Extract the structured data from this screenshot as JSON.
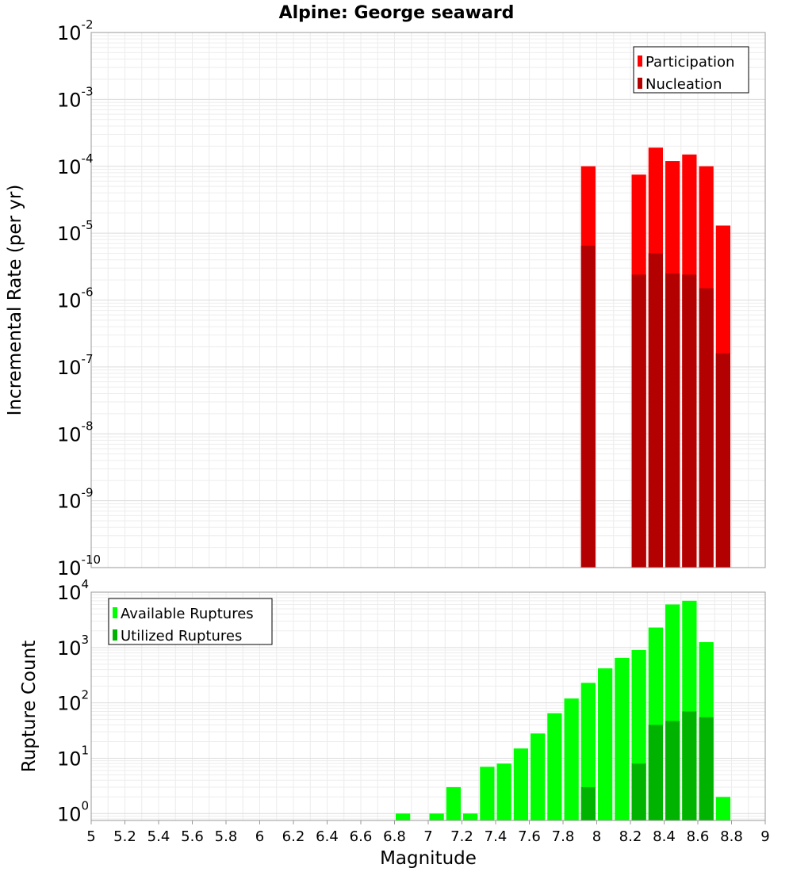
{
  "chart_data": [
    {
      "type": "bar",
      "title": "Alpine: George seaward",
      "ylabel": "Incremental Rate (per yr)",
      "xlabel": "",
      "yscale": "log",
      "ylim": [
        1e-10,
        0.01
      ],
      "xlim": [
        5,
        9
      ],
      "y_ticks": [
        {
          "base": "10",
          "exp": "-2"
        },
        {
          "base": "10",
          "exp": "-3"
        },
        {
          "base": "10",
          "exp": "-4"
        },
        {
          "base": "10",
          "exp": "-5"
        },
        {
          "base": "10",
          "exp": "-6"
        },
        {
          "base": "10",
          "exp": "-7"
        },
        {
          "base": "10",
          "exp": "-8"
        },
        {
          "base": "10",
          "exp": "-9"
        },
        {
          "base": "10",
          "exp": "-10"
        }
      ],
      "legend": {
        "position": "top-right",
        "entries": [
          "Participation",
          "Nucleation"
        ]
      },
      "bin_width": 0.1,
      "x": [
        7.95,
        8.25,
        8.35,
        8.45,
        8.55,
        8.65,
        8.75
      ],
      "series": [
        {
          "name": "Participation",
          "color": "#ff0000",
          "values": [
            0.0001,
            7.5e-05,
            0.00019,
            0.00012,
            0.00015,
            0.0001,
            1.3e-05
          ]
        },
        {
          "name": "Nucleation",
          "color": "#b30000",
          "values": [
            6.5e-06,
            2.4e-06,
            5e-06,
            2.5e-06,
            2.4e-06,
            1.5e-06,
            1.6e-07
          ]
        }
      ]
    },
    {
      "type": "bar",
      "title": "",
      "ylabel": "Rupture Count",
      "xlabel": "Magnitude",
      "yscale": "log",
      "ylim": [
        0.75,
        10000
      ],
      "xlim": [
        5,
        9
      ],
      "y_ticks": [
        {
          "value": 10000,
          "base": "10",
          "exp": "4"
        },
        {
          "value": 1000,
          "base": "10",
          "exp": "3"
        },
        {
          "value": 100,
          "base": "10",
          "exp": "2"
        },
        {
          "value": 10,
          "base": "10",
          "exp": "1"
        },
        {
          "value": 1,
          "base": "10",
          "exp": "0"
        }
      ],
      "x_ticks": [
        "5",
        "5.2",
        "5.4",
        "5.6",
        "5.8",
        "6",
        "6.2",
        "6.4",
        "6.6",
        "6.8",
        "7",
        "7.2",
        "7.4",
        "7.6",
        "7.8",
        "8",
        "8.2",
        "8.4",
        "8.6",
        "8.8",
        "9"
      ],
      "legend": {
        "position": "top-left",
        "entries": [
          "Available Ruptures",
          "Utilized Ruptures"
        ]
      },
      "bin_width": 0.1,
      "series": [
        {
          "name": "Available Ruptures",
          "color": "#00ff00",
          "x": [
            6.85,
            7.05,
            7.15,
            7.25,
            7.35,
            7.45,
            7.55,
            7.65,
            7.75,
            7.85,
            7.95,
            8.05,
            8.15,
            8.25,
            8.35,
            8.45,
            8.55,
            8.65,
            8.75
          ],
          "values": [
            1,
            1,
            3,
            1,
            7,
            8,
            15,
            28,
            65,
            120,
            230,
            420,
            650,
            900,
            2300,
            6000,
            7000,
            1250,
            2
          ]
        },
        {
          "name": "Utilized Ruptures",
          "color": "#00b300",
          "x": [
            7.95,
            8.25,
            8.35,
            8.45,
            8.55,
            8.65
          ],
          "values": [
            3,
            8,
            40,
            47,
            70,
            55
          ]
        }
      ]
    }
  ]
}
